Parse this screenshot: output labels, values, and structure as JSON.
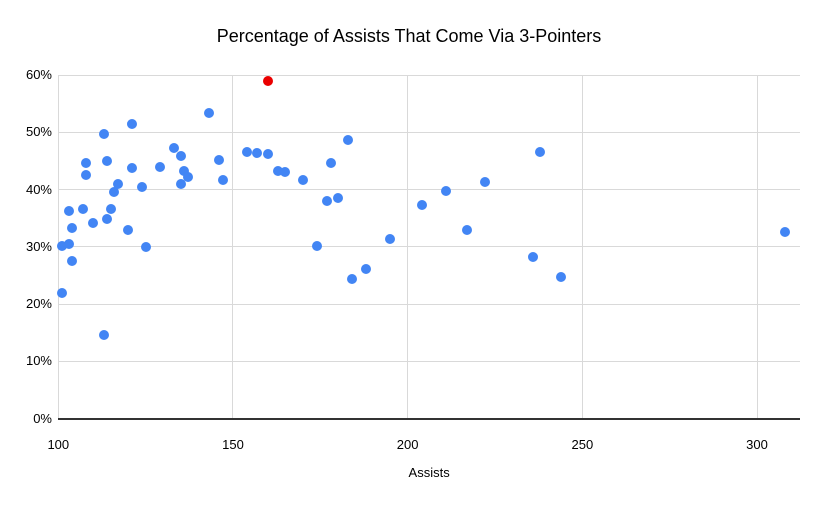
{
  "chart_data": {
    "type": "scatter",
    "title": "Percentage of Assists That Come Via 3-Pointers",
    "xlabel": "Assists",
    "ylabel": "",
    "xlim": [
      100,
      312.3
    ],
    "ylim": [
      0,
      60
    ],
    "x_ticks": [
      100,
      150,
      200,
      250,
      300
    ],
    "x_tick_labels": [
      "100",
      "150",
      "200",
      "250",
      "300"
    ],
    "y_ticks": [
      0,
      10,
      20,
      30,
      40,
      50,
      60
    ],
    "y_tick_labels": [
      "0%",
      "10%",
      "20%",
      "30%",
      "40%",
      "50%",
      "60%"
    ],
    "grid": true,
    "legend_position": "none",
    "series": [
      {
        "name": "blue-points",
        "color": "#4285f4",
        "points": [
          [
            101,
            30.2
          ],
          [
            103,
            30.5
          ],
          [
            101,
            22.0
          ],
          [
            104,
            33.3
          ],
          [
            104,
            27.6
          ],
          [
            103,
            36.3
          ],
          [
            107,
            36.6
          ],
          [
            108,
            44.6
          ],
          [
            108,
            42.6
          ],
          [
            110,
            34.2
          ],
          [
            113,
            49.7
          ],
          [
            113,
            14.6
          ],
          [
            114,
            44.9
          ],
          [
            114,
            34.8
          ],
          [
            115,
            36.6
          ],
          [
            116,
            39.5
          ],
          [
            117,
            41.0
          ],
          [
            120,
            33.0
          ],
          [
            121,
            51.4
          ],
          [
            121,
            43.7
          ],
          [
            124,
            40.4
          ],
          [
            125,
            30.0
          ],
          [
            129,
            44.0
          ],
          [
            133,
            47.3
          ],
          [
            135,
            45.8
          ],
          [
            135,
            41.0
          ],
          [
            136,
            43.3
          ],
          [
            137,
            42.2
          ],
          [
            143,
            53.3
          ],
          [
            146,
            45.2
          ],
          [
            147,
            41.6
          ],
          [
            154,
            46.5
          ],
          [
            157,
            46.4
          ],
          [
            160,
            46.2
          ],
          [
            163,
            43.3
          ],
          [
            165,
            43.0
          ],
          [
            170,
            41.6
          ],
          [
            174,
            30.1
          ],
          [
            177,
            38.0
          ],
          [
            178,
            44.7
          ],
          [
            180,
            38.5
          ],
          [
            183,
            48.6
          ],
          [
            184,
            24.3
          ],
          [
            188,
            26.1
          ],
          [
            195,
            31.4
          ],
          [
            204,
            37.3
          ],
          [
            211,
            39.7
          ],
          [
            217,
            32.9
          ],
          [
            222,
            41.3
          ],
          [
            236,
            28.2
          ],
          [
            238,
            46.5
          ],
          [
            244,
            24.8
          ],
          [
            308,
            32.5
          ]
        ]
      },
      {
        "name": "red-highlight-point",
        "color": "#ea0000",
        "points": [
          [
            160,
            59.0
          ]
        ]
      }
    ]
  },
  "colors": {
    "background": "#ffffff",
    "gridline": "#d9d9d9",
    "axis_baseline": "#333333",
    "text": "#000000",
    "series_blue": "#4285f4",
    "series_red": "#ea0000"
  }
}
